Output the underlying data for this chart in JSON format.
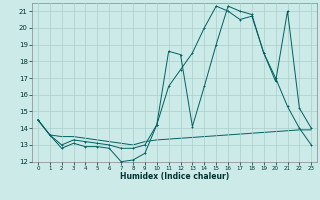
{
  "xlabel": "Humidex (Indice chaleur)",
  "bg_color": "#cceae8",
  "grid_color": "#aacfcc",
  "line_color": "#006060",
  "xlim": [
    -0.5,
    23.5
  ],
  "ylim": [
    12,
    21.5
  ],
  "xtick_labels": [
    "0",
    "1",
    "2",
    "3",
    "4",
    "5",
    "6",
    "7",
    "8",
    "9",
    "10",
    "11",
    "12",
    "13",
    "14",
    "15",
    "16",
    "17",
    "18",
    "19",
    "20",
    "21",
    "22",
    "23"
  ],
  "xtick_vals": [
    0,
    1,
    2,
    3,
    4,
    5,
    6,
    7,
    8,
    9,
    10,
    11,
    12,
    13,
    14,
    15,
    16,
    17,
    18,
    19,
    20,
    21,
    22,
    23
  ],
  "ytick_vals": [
    12,
    13,
    14,
    15,
    16,
    17,
    18,
    19,
    20,
    21
  ],
  "s1_x": [
    0,
    1,
    2,
    3,
    4,
    5,
    6,
    7,
    8,
    9,
    10,
    11,
    12,
    13,
    14,
    15,
    16,
    17,
    18,
    19,
    20,
    21,
    22,
    23
  ],
  "s1_y": [
    14.5,
    13.6,
    12.8,
    13.1,
    12.9,
    12.9,
    12.8,
    12.0,
    12.1,
    12.5,
    14.2,
    18.6,
    18.4,
    14.1,
    16.5,
    19.0,
    21.3,
    21.0,
    20.8,
    18.5,
    16.8,
    21.0,
    15.2,
    14.0
  ],
  "s2_x": [
    0,
    1,
    2,
    3,
    4,
    5,
    6,
    7,
    8,
    9,
    10,
    11,
    12,
    13,
    14,
    15,
    16,
    17,
    18,
    19,
    20,
    21,
    22,
    23
  ],
  "s2_y": [
    14.5,
    13.6,
    13.0,
    13.3,
    13.2,
    13.1,
    13.0,
    12.8,
    12.8,
    13.0,
    14.2,
    16.5,
    17.5,
    18.5,
    20.0,
    21.3,
    21.0,
    20.5,
    20.7,
    18.5,
    17.0,
    15.3,
    14.0,
    13.0
  ],
  "s3_x": [
    0,
    1,
    2,
    3,
    4,
    5,
    6,
    7,
    8,
    9,
    10,
    11,
    12,
    13,
    14,
    15,
    16,
    17,
    18,
    19,
    20,
    21,
    22,
    23
  ],
  "s3_y": [
    14.5,
    13.6,
    13.5,
    13.5,
    13.4,
    13.3,
    13.2,
    13.1,
    13.0,
    13.2,
    13.3,
    13.35,
    13.4,
    13.45,
    13.5,
    13.55,
    13.6,
    13.65,
    13.7,
    13.75,
    13.8,
    13.85,
    13.9,
    13.9
  ]
}
